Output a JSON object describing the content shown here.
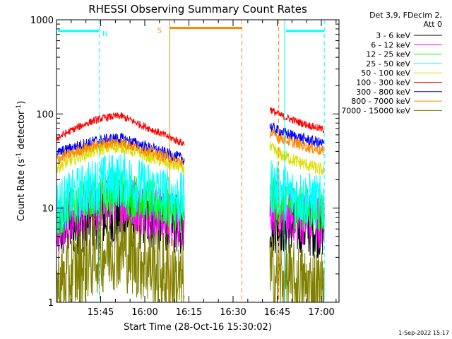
{
  "chart_data": {
    "type": "line",
    "title": "RHESSI Observing Summary Count Rates",
    "xlabel": "Start Time (28-Oct-16 15:30:02)",
    "ylabel_main": "Count Rate (s",
    "ylabel_sup1": "-1",
    "ylabel_mid": " detector",
    "ylabel_sup2": "-1",
    "ylabel_end": ")",
    "yscale": "log",
    "ylim": [
      1,
      1000
    ],
    "xlim_minutes": [
      0,
      96
    ],
    "x_ticks": [
      {
        "label": "15:45",
        "minutes": 15
      },
      {
        "label": "16:00",
        "minutes": 30
      },
      {
        "label": "16:15",
        "minutes": 45
      },
      {
        "label": "16:30",
        "minutes": 60
      },
      {
        "label": "16:45",
        "minutes": 75
      },
      {
        "label": "17:00",
        "minutes": 90
      }
    ],
    "y_ticks": [
      {
        "label": "1",
        "value": 1
      },
      {
        "label": "10",
        "value": 10
      },
      {
        "label": "100",
        "value": 100
      },
      {
        "label": "1000",
        "value": 1000
      }
    ],
    "legend_header": [
      "Det 3,9, FDecim 2,",
      "Att 0"
    ],
    "legend_placement": "right",
    "data_gap_minutes": [
      43.5,
      72.5
    ],
    "series": [
      {
        "name": "3 - 6 keV",
        "color": "#000000",
        "left": {
          "start": 5.5,
          "peak": 8,
          "end": 6.5,
          "noise": 0.32
        },
        "right": {
          "start": 7,
          "end": 6,
          "noise": 0.32
        }
      },
      {
        "name": "6 - 12 keV",
        "color": "#ff00ff",
        "left": {
          "start": 6,
          "peak": 12,
          "end": 7,
          "noise": 0.3
        },
        "right": {
          "start": 11,
          "end": 7,
          "noise": 0.3
        }
      },
      {
        "name": "12 - 25 keV",
        "color": "#00ff00",
        "left": {
          "start": 8,
          "peak": 15,
          "end": 9,
          "noise": 0.24
        },
        "right": {
          "start": 13,
          "end": 9,
          "noise": 0.24
        }
      },
      {
        "name": "25 - 50 keV",
        "color": "#00ffff",
        "left": {
          "start": 10,
          "peak": 20,
          "end": 12,
          "noise": 0.3
        },
        "right": {
          "start": 18,
          "end": 11,
          "noise": 0.3
        }
      },
      {
        "name": "50 - 100 keV",
        "color": "#dddd00",
        "left": {
          "start": 27,
          "peak": 45,
          "end": 26,
          "noise": 0.07
        },
        "right": {
          "start": 45,
          "end": 25,
          "noise": 0.07
        }
      },
      {
        "name": "100 - 300 keV",
        "color": "#ff0000",
        "left": {
          "start": 55,
          "peak": 95,
          "end": 48,
          "noise": 0.04
        },
        "right": {
          "start": 115,
          "end": 68,
          "noise": 0.04
        }
      },
      {
        "name": "300 - 800 keV",
        "color": "#0000ff",
        "left": {
          "start": 38,
          "peak": 55,
          "end": 33,
          "noise": 0.06
        },
        "right": {
          "start": 75,
          "end": 48,
          "noise": 0.06
        }
      },
      {
        "name": "800 - 7000 keV",
        "color": "#ff8800",
        "left": {
          "start": 33,
          "peak": 50,
          "end": 30,
          "noise": 0.06
        },
        "right": {
          "start": 65,
          "end": 40,
          "noise": 0.06
        }
      },
      {
        "name": "7000 - 15000 keV",
        "color": "#808000",
        "left": {
          "start": 1.4,
          "peak": 3.8,
          "end": 1.5,
          "noise": 0.45
        },
        "right": {
          "start": 2,
          "end": 1.3,
          "noise": 0.45
        }
      }
    ],
    "flags": [
      {
        "label": "N",
        "color": "#00ffff",
        "y_value": 760,
        "x_start": 0.5,
        "x_end": 14.5,
        "dash_x": 14.5,
        "label_x": 16.5
      },
      {
        "label": "S",
        "color": "#ff8800",
        "y_value": 820,
        "x_start": 38.5,
        "x_end": 63,
        "dash_x": 63,
        "label_x": 35
      },
      {
        "label": "",
        "color": "#00ffff",
        "y_value": 760,
        "x_start": 78,
        "x_end": 91,
        "dash_x": 91,
        "label_x": 0
      }
    ],
    "solid_cyan_x": [
      0,
      77.5
    ],
    "solid_orange_x": [
      38.5
    ],
    "dashed_orange_x": [
      75.5
    ],
    "timestamp": "1-Sep-2022 15:17"
  }
}
